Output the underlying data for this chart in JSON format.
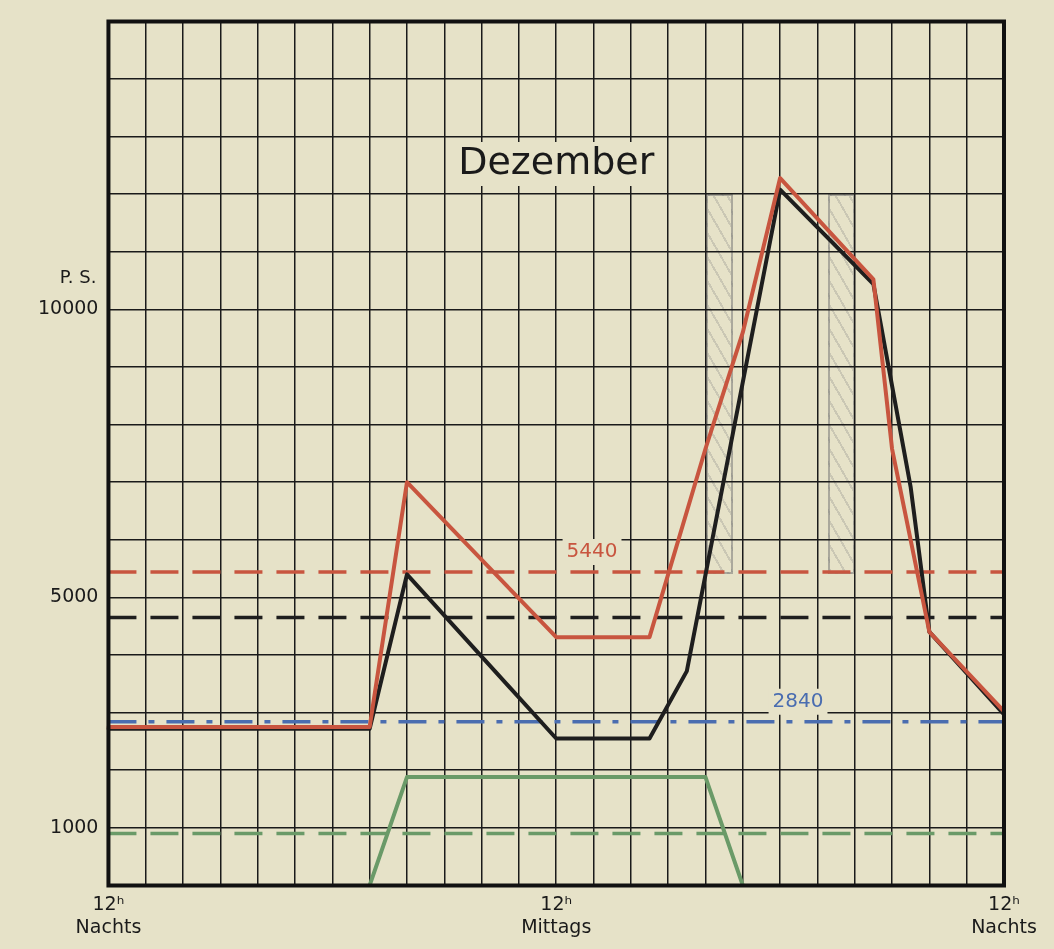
{
  "chart_data": {
    "type": "line",
    "title": "Dezember",
    "ylabel": "P. S.",
    "categories": [
      "12ʰ\nNachts",
      null,
      null,
      null,
      null,
      null,
      null,
      null,
      null,
      null,
      null,
      null,
      null,
      null,
      null,
      null,
      null,
      null,
      null,
      null,
      null,
      null,
      null,
      null,
      "12ʰ\nMittags",
      null,
      null,
      null,
      null,
      null,
      null,
      null,
      null,
      null,
      null,
      null,
      null,
      null,
      null,
      null,
      null,
      null,
      null,
      null,
      null,
      null,
      null,
      null,
      "12ʰ\nNachts"
    ],
    "ylim": [
      0,
      15000
    ],
    "yticks": [
      {
        "value": 0,
        "label": null
      },
      1000,
      {
        "value": 2000,
        "label": null
      },
      {
        "value": 3000,
        "label": null
      },
      {
        "value": 4000,
        "label": null
      },
      5000,
      {
        "value": 6000,
        "label": null
      },
      {
        "value": 7000,
        "label": null
      },
      {
        "value": 8000,
        "label": null
      },
      {
        "value": 9000,
        "label": null
      },
      10000,
      {
        "value": 11000,
        "label": null
      },
      {
        "value": 12000,
        "label": null
      },
      {
        "value": 13000,
        "label": null
      },
      {
        "value": 14000,
        "label": null
      },
      {
        "value": 15000,
        "label": null
      }
    ],
    "grid": true,
    "legend": false,
    "marker": "none",
    "line_style": "solid",
    "series": [
      {
        "color": "#c8553f",
        "values": [
          2750,
          null,
          null,
          null,
          null,
          null,
          null,
          null,
          null,
          null,
          null,
          null,
          null,
          null,
          2750,
          null,
          7000,
          null,
          null,
          null,
          null,
          null,
          null,
          null,
          4310,
          null,
          null,
          null,
          null,
          4310,
          null,
          null,
          7580,
          null,
          9600,
          null,
          12280,
          null,
          null,
          null,
          null,
          10520,
          7580,
          null,
          4400,
          null,
          null,
          null,
          3020
        ]
      },
      {
        "color": "#1e1e1e",
        "values": [
          2720,
          null,
          null,
          null,
          null,
          null,
          null,
          null,
          null,
          null,
          null,
          null,
          null,
          null,
          2720,
          null,
          5400,
          null,
          null,
          null,
          null,
          null,
          null,
          null,
          2550,
          null,
          null,
          null,
          null,
          2550,
          null,
          3720,
          null,
          null,
          null,
          null,
          12080,
          null,
          null,
          null,
          null,
          10440,
          null,
          6910,
          4400,
          null,
          null,
          null,
          2970
        ]
      },
      {
        "color": "#6a9a68",
        "values": [
          null,
          null,
          null,
          null,
          null,
          null,
          null,
          null,
          null,
          null,
          null,
          null,
          null,
          null,
          0,
          null,
          1880,
          null,
          null,
          null,
          null,
          null,
          null,
          null,
          null,
          null,
          null,
          null,
          null,
          null,
          null,
          null,
          1880,
          null,
          0,
          null,
          null,
          null,
          null,
          null,
          null,
          null,
          null,
          null,
          null,
          null,
          null,
          null,
          null
        ]
      }
    ],
    "ref_lines": [
      {
        "axis": "y",
        "value": 5440,
        "label": "5440",
        "color": "#c8553f",
        "line_style": "dashed"
      },
      {
        "axis": "y",
        "value": 4650,
        "color": "#1e1e1e",
        "line_style": "dashed"
      },
      {
        "axis": "y",
        "value": 2840,
        "label": "2840",
        "color": "#4a6db0",
        "line_style": "dashdot"
      },
      {
        "axis": "y",
        "value": 900,
        "color": "#6a9a68",
        "line_style": "dashed"
      }
    ]
  }
}
